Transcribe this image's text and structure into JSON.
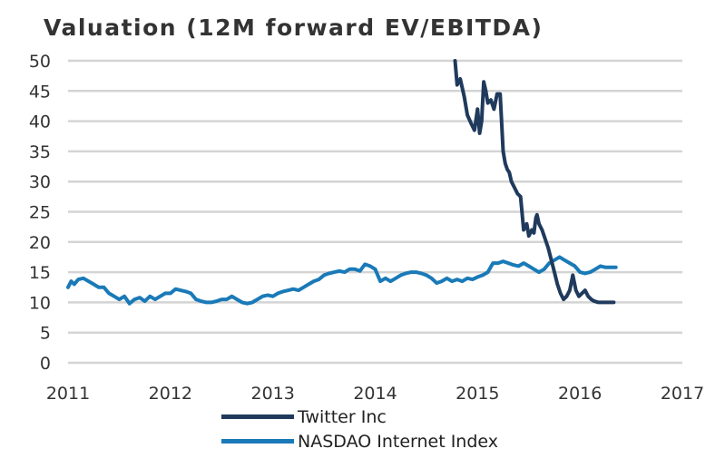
{
  "chart_data": {
    "type": "line",
    "title": "Valuation (12M forward EV/EBITDA)",
    "xlabel": "",
    "ylabel": "",
    "xlim": [
      2011,
      2017
    ],
    "ylim": [
      0,
      50
    ],
    "x_ticks": [
      "2011",
      "2012",
      "2013",
      "2014",
      "2015",
      "2016",
      "2017"
    ],
    "y_ticks": [
      "0",
      "5",
      "10",
      "15",
      "20",
      "25",
      "30",
      "35",
      "40",
      "45",
      "50"
    ],
    "grid": "horizontal",
    "legend_position": "bottom",
    "series": [
      {
        "name": "Twitter Inc",
        "color": "#1f3a5c",
        "x": [
          2014.78,
          2014.8,
          2014.83,
          2014.87,
          2014.9,
          2014.94,
          2014.97,
          2015.0,
          2015.02,
          2015.04,
          2015.06,
          2015.08,
          2015.1,
          2015.13,
          2015.16,
          2015.19,
          2015.22,
          2015.25,
          2015.27,
          2015.29,
          2015.31,
          2015.33,
          2015.36,
          2015.39,
          2015.42,
          2015.45,
          2015.48,
          2015.5,
          2015.53,
          2015.55,
          2015.57,
          2015.58,
          2015.6,
          2015.63,
          2015.66,
          2015.69,
          2015.72,
          2015.75,
          2015.78,
          2015.81,
          2015.84,
          2015.87,
          2015.9,
          2015.93,
          2015.96,
          2015.99,
          2016.02,
          2016.05,
          2016.08,
          2016.11,
          2016.14,
          2016.18,
          2016.22,
          2016.26,
          2016.3,
          2016.33
        ],
        "values": [
          50,
          46,
          47,
          44,
          41,
          39.5,
          38.5,
          42,
          38,
          40,
          46.5,
          45,
          43,
          43.5,
          42,
          44.5,
          44.5,
          35,
          33,
          32,
          31.5,
          30,
          29,
          28,
          27.5,
          22,
          23,
          21,
          22,
          21.5,
          24,
          24.5,
          23,
          22,
          20.5,
          19,
          17,
          15,
          13,
          11.5,
          10.5,
          11,
          12,
          14.5,
          12,
          11,
          11.5,
          12,
          11,
          10.5,
          10.2,
          10,
          10,
          10,
          10,
          10
        ]
      },
      {
        "name": "NASDAO Internet Index",
        "color": "#1a7ab8",
        "x": [
          2011.0,
          2011.03,
          2011.06,
          2011.1,
          2011.15,
          2011.2,
          2011.25,
          2011.3,
          2011.35,
          2011.4,
          2011.45,
          2011.5,
          2011.55,
          2011.6,
          2011.65,
          2011.7,
          2011.75,
          2011.8,
          2011.85,
          2011.9,
          2011.95,
          2012.0,
          2012.05,
          2012.1,
          2012.15,
          2012.2,
          2012.25,
          2012.3,
          2012.35,
          2012.4,
          2012.45,
          2012.5,
          2012.55,
          2012.6,
          2012.65,
          2012.7,
          2012.75,
          2012.8,
          2012.85,
          2012.9,
          2012.95,
          2013.0,
          2013.05,
          2013.1,
          2013.15,
          2013.2,
          2013.25,
          2013.3,
          2013.35,
          2013.4,
          2013.45,
          2013.5,
          2013.55,
          2013.6,
          2013.65,
          2013.7,
          2013.75,
          2013.8,
          2013.85,
          2013.9,
          2013.95,
          2014.0,
          2014.05,
          2014.1,
          2014.15,
          2014.2,
          2014.25,
          2014.3,
          2014.35,
          2014.4,
          2014.45,
          2014.5,
          2014.55,
          2014.6,
          2014.65,
          2014.7,
          2014.75,
          2014.8,
          2014.85,
          2014.9,
          2014.95,
          2015.0,
          2015.05,
          2015.1,
          2015.15,
          2015.2,
          2015.25,
          2015.3,
          2015.35,
          2015.4,
          2015.45,
          2015.5,
          2015.55,
          2015.6,
          2015.65,
          2015.7,
          2015.75,
          2015.8,
          2015.85,
          2015.9,
          2015.95,
          2016.0,
          2016.05,
          2016.1,
          2016.15,
          2016.2,
          2016.25,
          2016.3,
          2016.35
        ],
        "values": [
          12.5,
          13.5,
          13,
          13.8,
          14,
          13.5,
          13,
          12.5,
          12.5,
          11.5,
          11,
          10.5,
          11,
          9.8,
          10.5,
          10.8,
          10.2,
          11,
          10.5,
          11,
          11.5,
          11.5,
          12.2,
          12,
          11.8,
          11.5,
          10.5,
          10.2,
          10,
          10,
          10.2,
          10.5,
          10.5,
          11,
          10.5,
          10,
          9.8,
          10,
          10.5,
          11,
          11.2,
          11,
          11.5,
          11.8,
          12,
          12.2,
          12,
          12.5,
          13,
          13.5,
          13.8,
          14.5,
          14.8,
          15,
          15.2,
          15,
          15.5,
          15.5,
          15.2,
          16.3,
          16,
          15.5,
          13.5,
          14,
          13.5,
          14,
          14.5,
          14.8,
          15,
          15,
          14.8,
          14.5,
          14,
          13.2,
          13.5,
          14,
          13.5,
          13.8,
          13.5,
          14,
          13.8,
          14.2,
          14.5,
          15,
          16.5,
          16.5,
          16.8,
          16.5,
          16.2,
          16,
          16.5,
          16,
          15.5,
          15,
          15.5,
          16.5,
          17,
          17.5,
          17,
          16.5,
          16,
          15,
          14.8,
          15,
          15.5,
          16,
          15.8,
          15.8,
          15.8
        ]
      }
    ]
  }
}
